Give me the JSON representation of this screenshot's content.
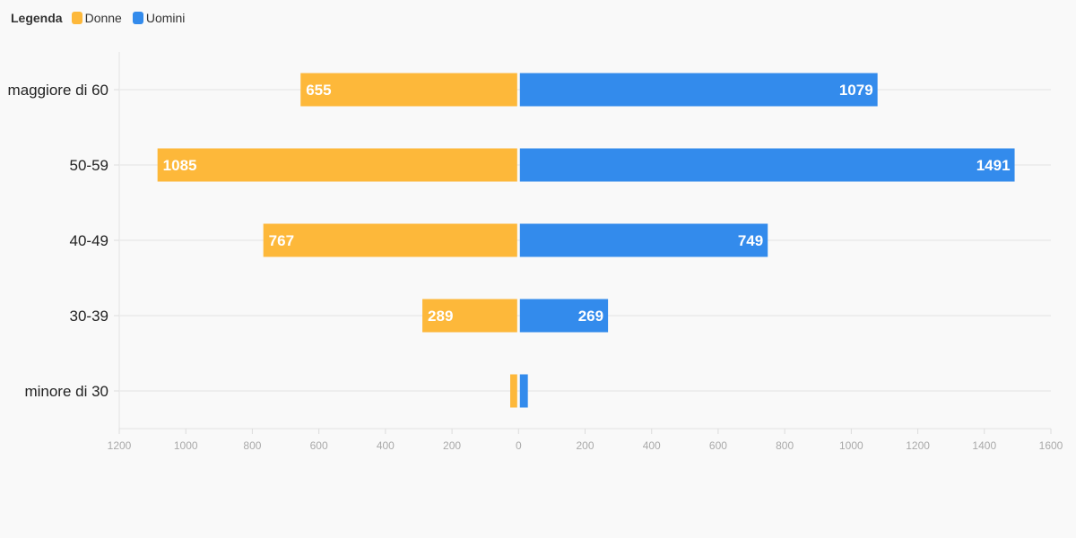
{
  "legend": {
    "title": "Legenda",
    "items": [
      {
        "label": "Donne",
        "color": "#FDB83A"
      },
      {
        "label": "Uomini",
        "color": "#338BEC"
      }
    ]
  },
  "chart_data": {
    "type": "bar",
    "orientation": "horizontal",
    "layout": "diverging",
    "categories": [
      "maggiore di 60",
      "50-59",
      "40-49",
      "30-39",
      "minore di 30"
    ],
    "series": [
      {
        "name": "Donne",
        "color": "#FDB83A",
        "values": [
          655,
          1085,
          767,
          289,
          25
        ],
        "labels": [
          "655",
          "1085",
          "767",
          "289",
          ""
        ]
      },
      {
        "name": "Uomini",
        "color": "#338BEC",
        "values": [
          1079,
          1491,
          749,
          269,
          28
        ],
        "labels": [
          "1079",
          "1491",
          "749",
          "269",
          ""
        ]
      }
    ],
    "x_ticks": [
      "1200",
      "1000",
      "800",
      "600",
      "400",
      "200",
      "0",
      "200",
      "400",
      "600",
      "800",
      "1000",
      "1200",
      "1400",
      "1600"
    ],
    "xlim": [
      -1200,
      1600
    ],
    "grid": true
  }
}
